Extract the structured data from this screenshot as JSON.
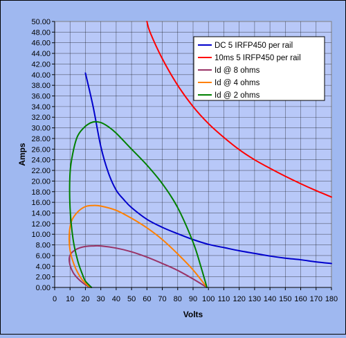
{
  "chart_data": {
    "type": "line",
    "xlabel": "Volts",
    "ylabel": "Amps",
    "xlim": [
      0,
      180
    ],
    "ylim": [
      0,
      50
    ],
    "x_ticks": [
      0,
      10,
      20,
      30,
      40,
      50,
      60,
      70,
      80,
      90,
      100,
      110,
      120,
      130,
      140,
      150,
      160,
      170,
      180
    ],
    "y_ticks": [
      0,
      2,
      4,
      6,
      8,
      10,
      12,
      14,
      16,
      18,
      20,
      22,
      24,
      26,
      28,
      30,
      32,
      34,
      36,
      38,
      40,
      42,
      44,
      46,
      48,
      50
    ],
    "y_tick_labels": [
      "0.00",
      "2.00",
      "4.00",
      "6.00",
      "8.00",
      "10.00",
      "12.00",
      "14.00",
      "16.00",
      "18.00",
      "20.00",
      "22.00",
      "24.00",
      "26.00",
      "28.00",
      "30.00",
      "32.00",
      "34.00",
      "36.00",
      "38.00",
      "40.00",
      "42.00",
      "44.00",
      "46.00",
      "48.00",
      "50.00"
    ],
    "grid": true,
    "legend_position": "top-right",
    "series": [
      {
        "name": "DC 5 IRFP450 per rail",
        "color": "#0000cc",
        "points": [
          [
            20,
            40.3
          ],
          [
            25,
            34
          ],
          [
            30,
            26.5
          ],
          [
            35,
            21.5
          ],
          [
            40,
            18.3
          ],
          [
            45,
            16.5
          ],
          [
            50,
            15
          ],
          [
            60,
            12.8
          ],
          [
            70,
            11.3
          ],
          [
            80,
            10.1
          ],
          [
            90,
            9
          ],
          [
            100,
            8.1
          ],
          [
            110,
            7.5
          ],
          [
            120,
            6.9
          ],
          [
            130,
            6.4
          ],
          [
            140,
            5.9
          ],
          [
            150,
            5.5
          ],
          [
            160,
            5.2
          ],
          [
            170,
            4.8
          ],
          [
            180,
            4.5
          ]
        ]
      },
      {
        "name": "10ms 5 IRFP450 per rail",
        "color": "#ff0000",
        "points": [
          [
            60,
            50
          ],
          [
            62,
            48
          ],
          [
            70,
            43
          ],
          [
            80,
            38
          ],
          [
            90,
            34
          ],
          [
            100,
            30.8
          ],
          [
            110,
            28.2
          ],
          [
            120,
            25.9
          ],
          [
            130,
            24
          ],
          [
            140,
            22.4
          ],
          [
            150,
            20.9
          ],
          [
            160,
            19.5
          ],
          [
            170,
            18.2
          ],
          [
            180,
            17
          ]
        ]
      },
      {
        "name": "Id @ 8 ohms",
        "color": "#993366",
        "points": [
          [
            99,
            0
          ],
          [
            90,
            1.6
          ],
          [
            80,
            3.2
          ],
          [
            70,
            4.5
          ],
          [
            60,
            5.7
          ],
          [
            50,
            6.7
          ],
          [
            40,
            7.4
          ],
          [
            30,
            7.8
          ],
          [
            25,
            7.8
          ],
          [
            20,
            7.7
          ],
          [
            15,
            7.3
          ],
          [
            11,
            6.5
          ],
          [
            9.5,
            5.5
          ],
          [
            10,
            4.2
          ],
          [
            12,
            2.8
          ],
          [
            15,
            1.7
          ],
          [
            19,
            0.7
          ],
          [
            23,
            0
          ]
        ]
      },
      {
        "name": "Id @ 4 ohms",
        "color": "#ff8000",
        "points": [
          [
            99,
            0
          ],
          [
            90,
            3.3
          ],
          [
            80,
            6.3
          ],
          [
            70,
            9
          ],
          [
            60,
            11.2
          ],
          [
            50,
            13
          ],
          [
            40,
            14.5
          ],
          [
            30,
            15.3
          ],
          [
            25,
            15.4
          ],
          [
            20,
            15.2
          ],
          [
            15,
            14.2
          ],
          [
            11,
            12.5
          ],
          [
            9.5,
            10
          ],
          [
            10,
            7
          ],
          [
            13,
            4
          ],
          [
            17,
            1.8
          ],
          [
            20,
            0.8
          ],
          [
            23,
            0
          ]
        ]
      },
      {
        "name": "Id @ 2 ohms",
        "color": "#008000",
        "points": [
          [
            99,
            0
          ],
          [
            95,
            4
          ],
          [
            90,
            8.5
          ],
          [
            80,
            15
          ],
          [
            70,
            19.5
          ],
          [
            60,
            23
          ],
          [
            50,
            26
          ],
          [
            40,
            29
          ],
          [
            35,
            30.2
          ],
          [
            30,
            31
          ],
          [
            25,
            31.1
          ],
          [
            20,
            30.3
          ],
          [
            15,
            28.5
          ],
          [
            12,
            25.5
          ],
          [
            10,
            21.5
          ],
          [
            10,
            15
          ],
          [
            12,
            9
          ],
          [
            15,
            5
          ],
          [
            18,
            2.5
          ],
          [
            20,
            1.2
          ],
          [
            24,
            0
          ]
        ]
      }
    ]
  }
}
